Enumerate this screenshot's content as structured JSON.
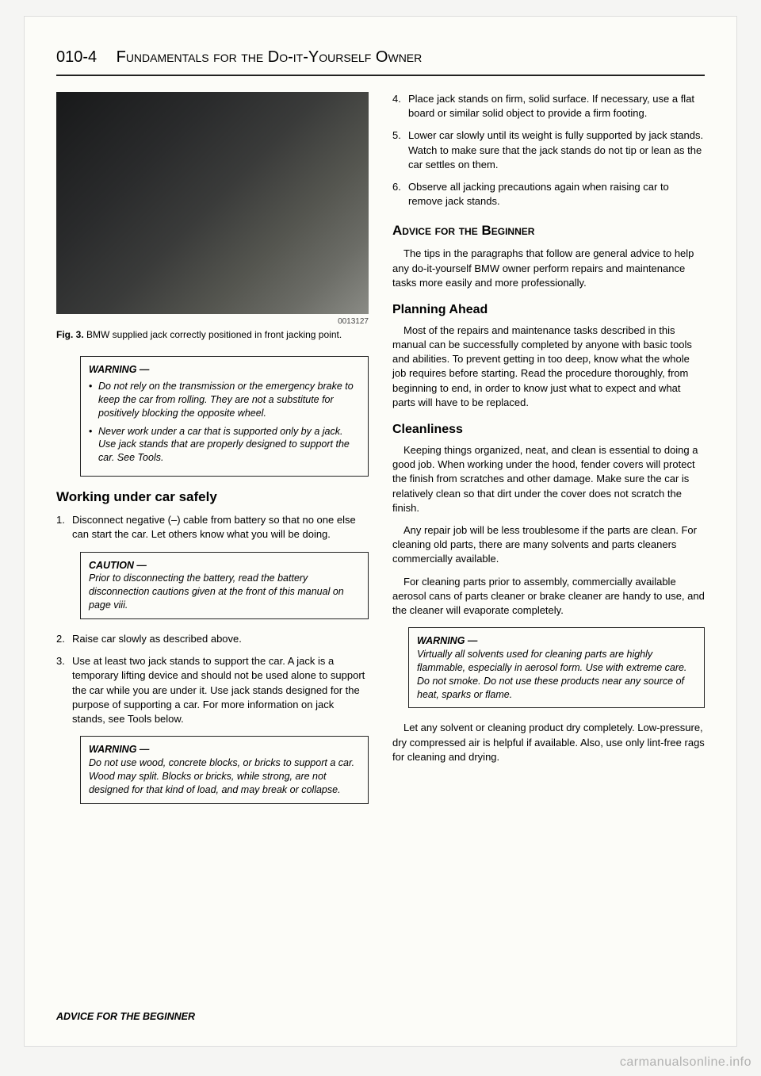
{
  "header": {
    "page_num": "010-4",
    "title": "Fundamentals for the Do-it-Yourself Owner"
  },
  "left": {
    "photo_id": "0013127",
    "fig_label": "Fig. 3.",
    "fig_caption": "BMW supplied jack correctly positioned in front jacking point.",
    "warning1": {
      "title": "WARNING —",
      "items": [
        "Do not rely on the transmission or the emergency brake to keep the car from rolling. They are not a substitute for positively blocking the opposite wheel.",
        "Never work under a car that is supported only by a jack. Use jack stands that are properly designed to support the car. See Tools."
      ]
    },
    "section_title": "Working under car safely",
    "steps_a": [
      "Disconnect negative (–) cable from battery so that no one else can start the car. Let others know what you will be doing."
    ],
    "caution": {
      "title": "CAUTION —",
      "text": "Prior to disconnecting the battery, read the battery disconnection cautions given at the front of this manual on page viii."
    },
    "steps_b": [
      "Raise car slowly as described above.",
      "Use at least two jack stands to support the car. A jack is a temporary lifting device and should not be used alone to support the car while you are under it. Use jack stands designed for the purpose of supporting a car. For more information on jack stands, see Tools below."
    ],
    "warning2": {
      "title": "WARNING —",
      "text": "Do not use wood, concrete blocks, or bricks to support a car. Wood may split. Blocks or bricks, while strong, are not designed for that kind of load, and may break or collapse."
    }
  },
  "right": {
    "steps_c": [
      "Place jack stands on firm, solid surface. If necessary, use a flat board or similar solid object to provide a firm footing.",
      "Lower car slowly until its weight is fully supported by jack stands. Watch to make sure that the jack stands do not tip or lean as the car settles on them.",
      "Observe all jacking precautions again when raising car to remove jack stands."
    ],
    "main_heading": "Advice for the Beginner",
    "intro": "The tips in the paragraphs that follow are general advice to help any do-it-yourself BMW owner perform repairs and maintenance tasks more easily and more professionally.",
    "planning_title": "Planning Ahead",
    "planning_text": "Most of the repairs and maintenance tasks described in this manual can be successfully completed by anyone with basic tools and abilities. To prevent getting in too deep, know what the whole job requires before starting. Read the procedure thoroughly, from beginning to end, in order to know just what to expect and what parts will have to be replaced.",
    "clean_title": "Cleanliness",
    "clean_p1": "Keeping things organized, neat, and clean is essential to doing a good job. When working under the hood, fender covers will protect the finish from scratches and other damage. Make sure the car is relatively clean so that dirt under the cover does not scratch the finish.",
    "clean_p2": "Any repair job will be less troublesome if the parts are clean. For cleaning old parts, there are many solvents and parts cleaners commercially available.",
    "clean_p3": "For cleaning parts prior to assembly, commercially available aerosol cans of parts cleaner or brake cleaner are handy to use, and the cleaner will evaporate completely.",
    "warning3": {
      "title": "WARNING —",
      "text": "Virtually all solvents used for cleaning parts are highly flammable, especially in aerosol form. Use with extreme care. Do not smoke. Do not use these products near any source of heat, sparks or flame."
    },
    "clean_p4": "Let any solvent or cleaning product dry completely. Low-pressure, dry compressed air is helpful if available. Also, use only lint-free rags for cleaning and drying."
  },
  "footer": "ADVICE FOR THE BEGINNER",
  "watermark": "carmanualsonline.info"
}
